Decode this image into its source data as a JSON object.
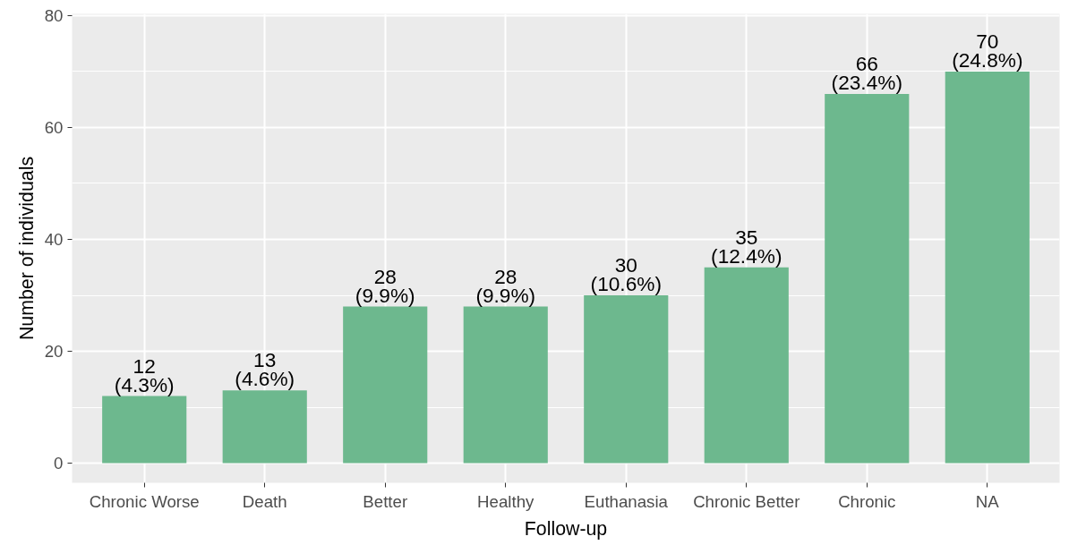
{
  "chart_data": {
    "type": "bar",
    "xlabel": "Follow-up",
    "ylabel": "Number of individuals",
    "categories": [
      "Chronic Worse",
      "Death",
      "Better",
      "Healthy",
      "Euthanasia",
      "Chronic Better",
      "Chronic",
      "NA"
    ],
    "values": [
      12,
      13,
      28,
      28,
      30,
      35,
      66,
      70
    ],
    "color": "#6db88e",
    "value_labels": [
      "12\n(4.3%)",
      "13\n(4.6%)",
      "28\n(9.9%)",
      "28\n(9.9%)",
      "30\n(10.6%)",
      "35\n(12.4%)",
      "66\n(23.4%)",
      "70\n(24.8%)"
    ],
    "ylim": [
      -3.5,
      80.3
    ],
    "yticks": [
      0,
      20,
      40,
      60,
      80
    ],
    "grid": true
  }
}
